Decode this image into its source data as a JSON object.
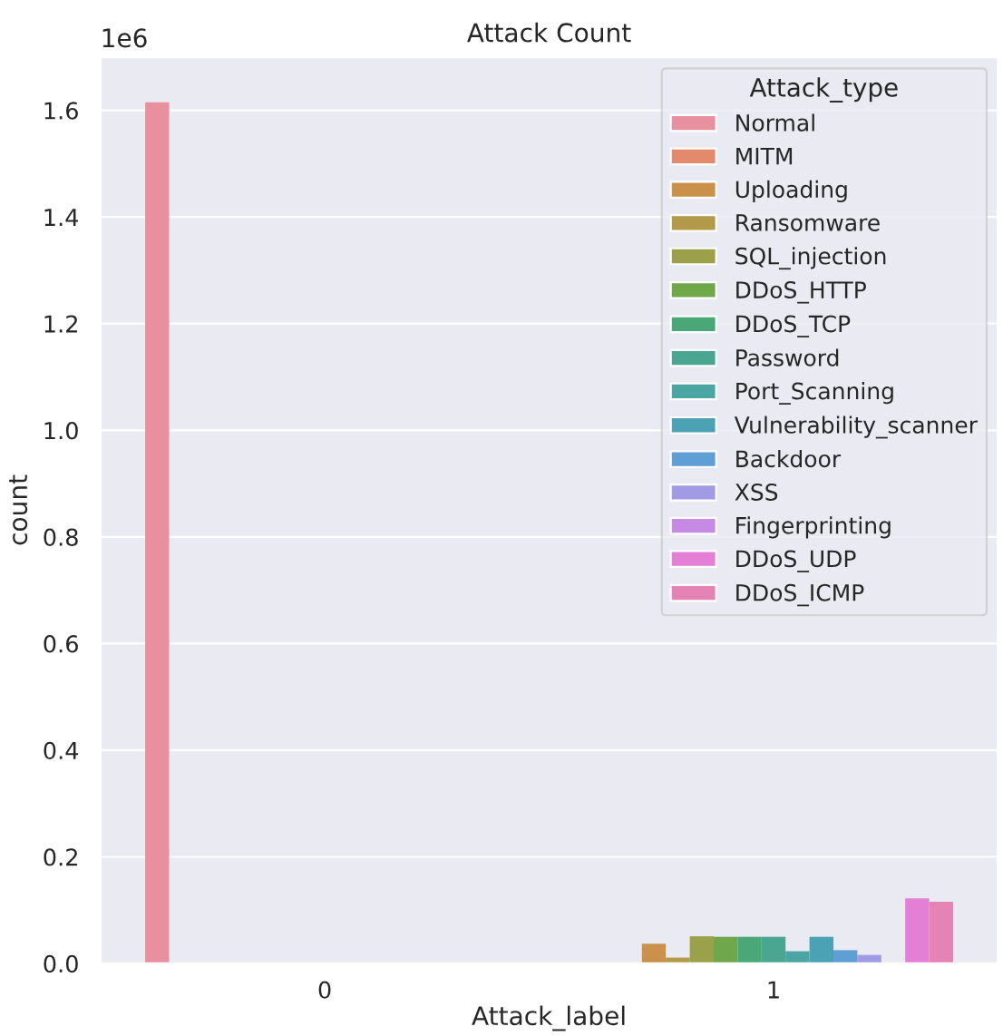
{
  "chart_data": {
    "type": "bar",
    "title": "Attack Count",
    "xlabel": "Attack_label",
    "ylabel": "count",
    "legend_title": "Attack_type",
    "categories": [
      "0",
      "1"
    ],
    "series": [
      {
        "name": "Normal",
        "color": "#e8909f",
        "values": [
          1.615,
          null
        ]
      },
      {
        "name": "MITM",
        "color": "#e48a6c",
        "values": [
          null,
          null
        ]
      },
      {
        "name": "Uploading",
        "color": "#c9914a",
        "values": [
          null,
          0.037
        ]
      },
      {
        "name": "Ransomware",
        "color": "#b39a4a",
        "values": [
          null,
          0.011
        ]
      },
      {
        "name": "SQL_injection",
        "color": "#9ba04a",
        "values": [
          null,
          0.051
        ]
      },
      {
        "name": "DDoS_HTTP",
        "color": "#6fa84a",
        "values": [
          null,
          0.05
        ]
      },
      {
        "name": "DDoS_TCP",
        "color": "#4aa777",
        "values": [
          null,
          0.05
        ]
      },
      {
        "name": "Password",
        "color": "#4aa690",
        "values": [
          null,
          0.05
        ]
      },
      {
        "name": "Port_Scanning",
        "color": "#4aa5a3",
        "values": [
          null,
          0.023
        ]
      },
      {
        "name": "Vulnerability_scanner",
        "color": "#4ba2b5",
        "values": [
          null,
          0.05
        ]
      },
      {
        "name": "Backdoor",
        "color": "#5f9fd6",
        "values": [
          null,
          0.025
        ]
      },
      {
        "name": "XSS",
        "color": "#a19ae4",
        "values": [
          null,
          0.016
        ]
      },
      {
        "name": "Fingerprinting",
        "color": "#c48ae4",
        "values": [
          null,
          null
        ]
      },
      {
        "name": "DDoS_UDP",
        "color": "#e37fd4",
        "values": [
          null,
          0.122
        ]
      },
      {
        "name": "DDoS_ICMP",
        "color": "#e584b4",
        "values": [
          null,
          0.116
        ]
      }
    ],
    "ylim": [
      0,
      1.7
    ],
    "yticks": [
      {
        "value": 0,
        "label": "0.0"
      },
      0.2,
      0.4,
      0.6,
      0.8,
      {
        "value": 1,
        "label": "1.0"
      },
      1.2,
      1.4,
      1.6
    ],
    "annotations": [
      "1e6"
    ],
    "grid": "y",
    "legend": "top right"
  }
}
